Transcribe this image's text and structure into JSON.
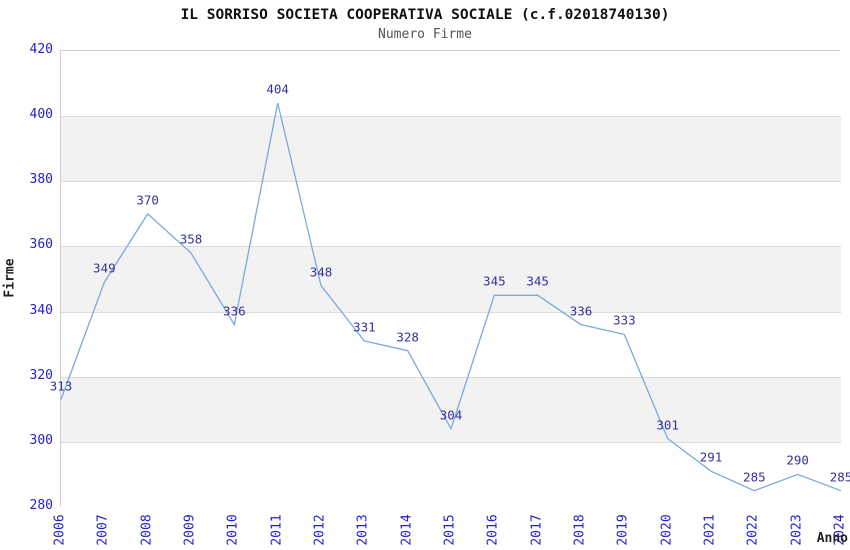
{
  "chart_data": {
    "type": "line",
    "title": "IL SORRISO SOCIETA COOPERATIVA SOCIALE (c.f.02018740130)",
    "subtitle": "Numero Firme",
    "xlabel": "Anno",
    "ylabel": "Firme",
    "categories": [
      "2006",
      "2007",
      "2008",
      "2009",
      "2010",
      "2011",
      "2012",
      "2013",
      "2014",
      "2015",
      "2016",
      "2017",
      "2018",
      "2019",
      "2020",
      "2021",
      "2022",
      "2023",
      "2024"
    ],
    "values": [
      313,
      349,
      370,
      358,
      336,
      404,
      348,
      331,
      328,
      304,
      345,
      345,
      336,
      333,
      301,
      291,
      285,
      290,
      285
    ],
    "ylim": [
      280,
      420
    ],
    "yticks": [
      280,
      300,
      320,
      340,
      360,
      380,
      400,
      420
    ],
    "ytick_step": 20,
    "grid": "horizontal gridlines with alternating shaded bands",
    "legend": "none",
    "data_labels": "shown above each point",
    "colors": {
      "line": "#78aadc",
      "tick_labels": "#2222cc",
      "data_labels": "#333399",
      "band_fill": "#f2f2f2",
      "band_alt_fill": "#ffffff",
      "gridline": "#dcdcdc",
      "plot_border": "#cccccc",
      "title": "#111111",
      "subtitle": "#555555",
      "axis_titles": "#222222",
      "background": "#ffffff"
    }
  }
}
